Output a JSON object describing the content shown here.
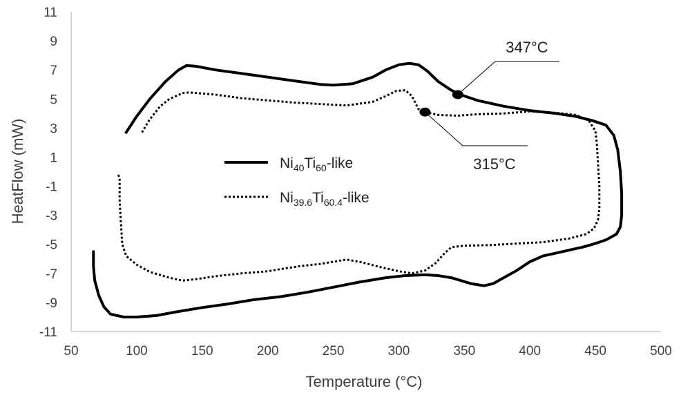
{
  "chart_data": {
    "type": "line",
    "title": "",
    "xlabel": "Temperature (°C)",
    "ylabel": "HeatFlow (mW)",
    "xlim": [
      50,
      500
    ],
    "ylim": [
      -11,
      11
    ],
    "xticks": [
      50,
      100,
      150,
      200,
      250,
      300,
      350,
      400,
      450,
      500
    ],
    "yticks": [
      11,
      9,
      7,
      5,
      3,
      1,
      -1,
      -3,
      -5,
      -7,
      -9,
      -11
    ],
    "grid": false,
    "legend_position": "center-left",
    "series": [
      {
        "name": "Ni40Ti60-like",
        "legend": {
          "base1": "Ni",
          "sub1": "40",
          "base2": "Ti",
          "sub2": "60",
          "suffix": "-like"
        },
        "style": "solid",
        "color": "#000000",
        "points": [
          [
            92,
            2.7
          ],
          [
            100,
            3.8
          ],
          [
            110,
            5.0
          ],
          [
            122,
            6.2
          ],
          [
            132,
            7.0
          ],
          [
            138,
            7.3
          ],
          [
            145,
            7.25
          ],
          [
            160,
            7.0
          ],
          [
            180,
            6.75
          ],
          [
            200,
            6.5
          ],
          [
            220,
            6.25
          ],
          [
            240,
            6.0
          ],
          [
            250,
            5.95
          ],
          [
            265,
            6.05
          ],
          [
            280,
            6.5
          ],
          [
            290,
            7.0
          ],
          [
            300,
            7.35
          ],
          [
            308,
            7.45
          ],
          [
            315,
            7.35
          ],
          [
            322,
            6.9
          ],
          [
            330,
            6.2
          ],
          [
            340,
            5.6
          ],
          [
            347,
            5.3
          ],
          [
            360,
            4.9
          ],
          [
            380,
            4.5
          ],
          [
            400,
            4.2
          ],
          [
            420,
            4.0
          ],
          [
            435,
            3.8
          ],
          [
            448,
            3.5
          ],
          [
            458,
            3.2
          ],
          [
            464,
            2.5
          ],
          [
            467,
            1.5
          ],
          [
            469,
            0.0
          ],
          [
            470,
            -1.5
          ],
          [
            470,
            -3.0
          ],
          [
            469,
            -3.8
          ],
          [
            466,
            -4.3
          ],
          [
            458,
            -4.7
          ],
          [
            448,
            -5.0
          ],
          [
            440,
            -5.2
          ],
          [
            430,
            -5.4
          ],
          [
            420,
            -5.6
          ],
          [
            410,
            -5.8
          ],
          [
            400,
            -6.2
          ],
          [
            390,
            -6.8
          ],
          [
            380,
            -7.3
          ],
          [
            372,
            -7.7
          ],
          [
            365,
            -7.85
          ],
          [
            355,
            -7.7
          ],
          [
            340,
            -7.3
          ],
          [
            330,
            -7.15
          ],
          [
            320,
            -7.1
          ],
          [
            305,
            -7.15
          ],
          [
            290,
            -7.3
          ],
          [
            270,
            -7.6
          ],
          [
            250,
            -7.95
          ],
          [
            230,
            -8.3
          ],
          [
            210,
            -8.6
          ],
          [
            190,
            -8.8
          ],
          [
            170,
            -9.1
          ],
          [
            150,
            -9.35
          ],
          [
            130,
            -9.65
          ],
          [
            115,
            -9.9
          ],
          [
            100,
            -10.0
          ],
          [
            90,
            -10.0
          ],
          [
            80,
            -9.8
          ],
          [
            75,
            -9.3
          ],
          [
            71,
            -8.5
          ],
          [
            68,
            -7.5
          ],
          [
            67,
            -6.5
          ],
          [
            67,
            -5.5
          ]
        ]
      },
      {
        "name": "Ni39.6Ti60.4-like",
        "legend": {
          "base1": "Ni",
          "sub1": "39.6",
          "base2": "Ti",
          "sub2": "60.4",
          "suffix": "-like"
        },
        "style": "dotted",
        "color": "#000000",
        "points": [
          [
            104,
            2.7
          ],
          [
            110,
            3.6
          ],
          [
            118,
            4.5
          ],
          [
            125,
            5.0
          ],
          [
            135,
            5.4
          ],
          [
            140,
            5.45
          ],
          [
            160,
            5.3
          ],
          [
            180,
            5.05
          ],
          [
            200,
            4.9
          ],
          [
            220,
            4.75
          ],
          [
            240,
            4.65
          ],
          [
            260,
            4.55
          ],
          [
            280,
            4.8
          ],
          [
            290,
            5.2
          ],
          [
            298,
            5.55
          ],
          [
            305,
            5.6
          ],
          [
            310,
            5.2
          ],
          [
            315,
            4.3
          ],
          [
            320,
            4.1
          ],
          [
            330,
            3.9
          ],
          [
            345,
            3.85
          ],
          [
            360,
            3.95
          ],
          [
            380,
            4.0
          ],
          [
            400,
            4.15
          ],
          [
            420,
            4.05
          ],
          [
            435,
            3.9
          ],
          [
            445,
            3.5
          ],
          [
            450,
            2.8
          ],
          [
            451,
            2.0
          ],
          [
            452,
            0.5
          ],
          [
            453,
            -1.0
          ],
          [
            453,
            -2.5
          ],
          [
            452,
            -3.3
          ],
          [
            449,
            -3.9
          ],
          [
            443,
            -4.3
          ],
          [
            430,
            -4.6
          ],
          [
            410,
            -4.85
          ],
          [
            390,
            -4.95
          ],
          [
            370,
            -5.05
          ],
          [
            350,
            -5.1
          ],
          [
            340,
            -5.2
          ],
          [
            335,
            -5.6
          ],
          [
            328,
            -6.3
          ],
          [
            320,
            -6.8
          ],
          [
            310,
            -7.0
          ],
          [
            300,
            -6.85
          ],
          [
            285,
            -6.55
          ],
          [
            270,
            -6.2
          ],
          [
            260,
            -6.05
          ],
          [
            250,
            -6.2
          ],
          [
            240,
            -6.35
          ],
          [
            225,
            -6.5
          ],
          [
            210,
            -6.7
          ],
          [
            200,
            -6.85
          ],
          [
            180,
            -7.0
          ],
          [
            160,
            -7.2
          ],
          [
            145,
            -7.4
          ],
          [
            135,
            -7.5
          ],
          [
            125,
            -7.3
          ],
          [
            110,
            -6.9
          ],
          [
            100,
            -6.4
          ],
          [
            92,
            -5.8
          ],
          [
            89,
            -5.0
          ],
          [
            88,
            -3.5
          ],
          [
            87,
            -2.0
          ],
          [
            87,
            -0.5
          ],
          [
            86,
            -0.2
          ]
        ]
      }
    ],
    "annotations": [
      {
        "text": "347°C",
        "point": [
          345,
          5.3
        ],
        "series": "Ni40Ti60-like"
      },
      {
        "text": "315°C",
        "point": [
          320,
          4.1
        ],
        "series": "Ni39.6Ti60.4-like"
      }
    ]
  }
}
